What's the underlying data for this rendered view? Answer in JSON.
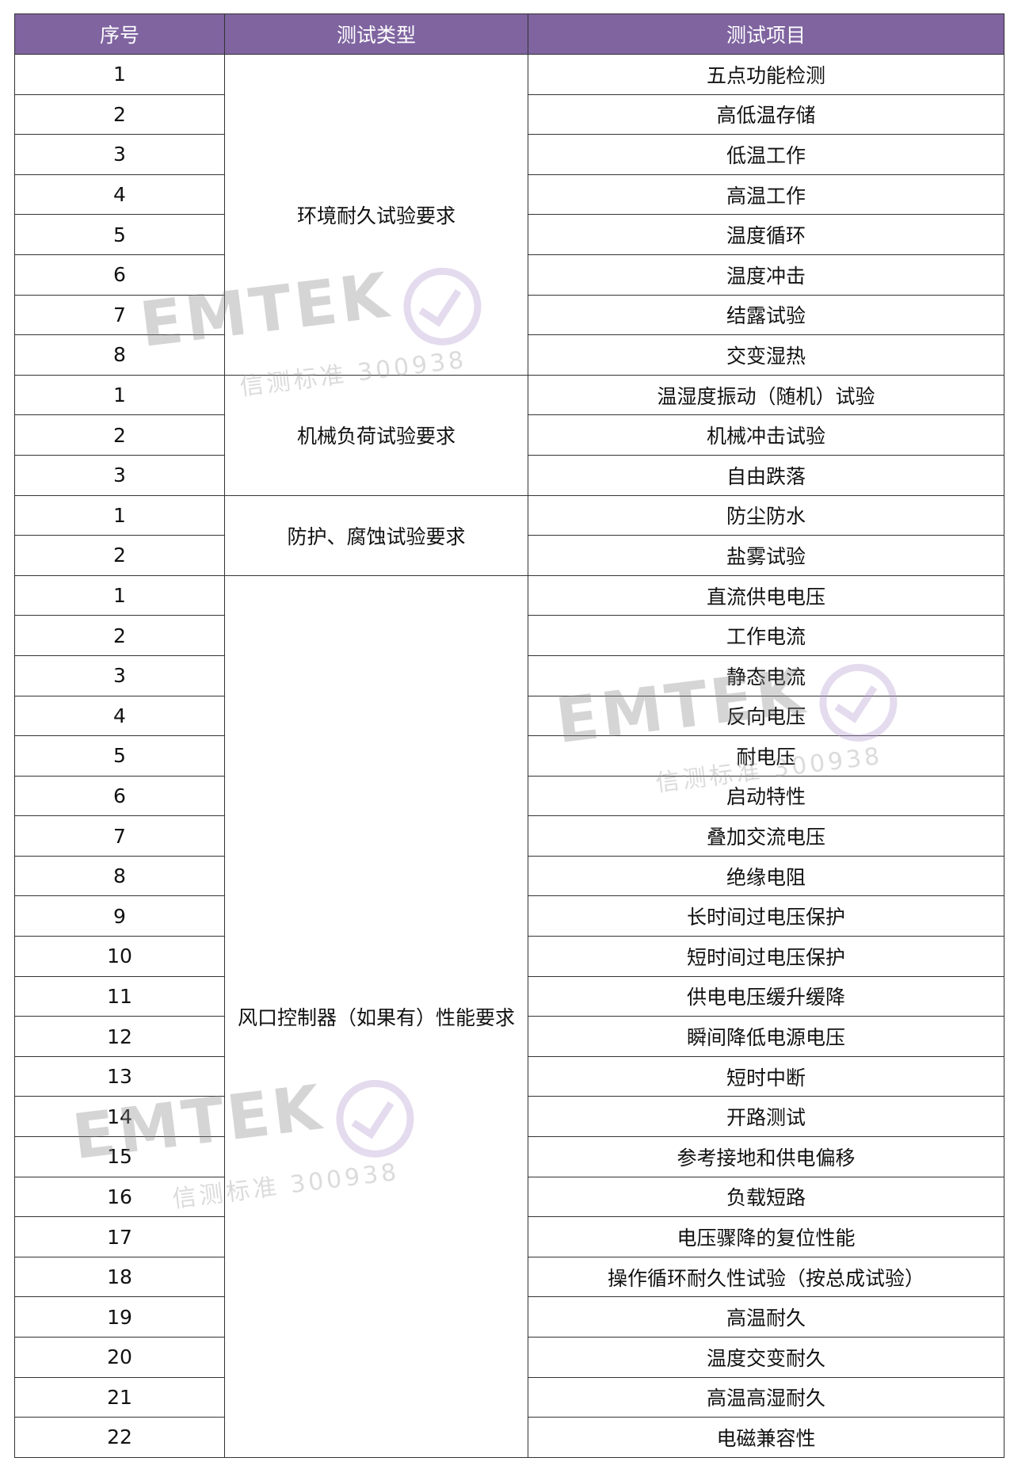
{
  "header": {
    "col1": "序号",
    "col2": "测试类型",
    "col3": "测试项目"
  },
  "colors": {
    "header_bg": "#7f64a0",
    "header_text": "#ffffff"
  },
  "groups": [
    {
      "type": "环境耐久试验要求",
      "items": [
        {
          "no": "1",
          "name": "五点功能检测"
        },
        {
          "no": "2",
          "name": "高低温存储"
        },
        {
          "no": "3",
          "name": "低温工作"
        },
        {
          "no": "4",
          "name": "高温工作"
        },
        {
          "no": "5",
          "name": "温度循环"
        },
        {
          "no": "6",
          "name": "温度冲击"
        },
        {
          "no": "7",
          "name": "结露试验"
        },
        {
          "no": "8",
          "name": "交变湿热"
        }
      ]
    },
    {
      "type": "机械负荷试验要求",
      "items": [
        {
          "no": "1",
          "name": "温湿度振动（随机）试验"
        },
        {
          "no": "2",
          "name": "机械冲击试验"
        },
        {
          "no": "3",
          "name": "自由跌落"
        }
      ]
    },
    {
      "type": "防护、腐蚀试验要求",
      "items": [
        {
          "no": "1",
          "name": "防尘防水"
        },
        {
          "no": "2",
          "name": "盐雾试验"
        }
      ]
    },
    {
      "type": "风口控制器（如果有）性能要求",
      "items": [
        {
          "no": "1",
          "name": "直流供电电压"
        },
        {
          "no": "2",
          "name": "工作电流"
        },
        {
          "no": "3",
          "name": "静态电流"
        },
        {
          "no": "4",
          "name": "反向电压"
        },
        {
          "no": "5",
          "name": "耐电压"
        },
        {
          "no": "6",
          "name": "启动特性"
        },
        {
          "no": "7",
          "name": "叠加交流电压"
        },
        {
          "no": "8",
          "name": "绝缘电阻"
        },
        {
          "no": "9",
          "name": "长时间过电压保护"
        },
        {
          "no": "10",
          "name": "短时间过电压保护"
        },
        {
          "no": "11",
          "name": "供电电压缓升缓降"
        },
        {
          "no": "12",
          "name": "瞬间降低电源电压"
        },
        {
          "no": "13",
          "name": "短时中断"
        },
        {
          "no": "14",
          "name": "开路测试"
        },
        {
          "no": "15",
          "name": "参考接地和供电偏移"
        },
        {
          "no": "16",
          "name": "负载短路"
        },
        {
          "no": "17",
          "name": "电压骤降的复位性能"
        },
        {
          "no": "18",
          "name": "操作循环耐久性试验（按总成试验）"
        },
        {
          "no": "19",
          "name": "高温耐久"
        },
        {
          "no": "20",
          "name": "温度交变耐久"
        },
        {
          "no": "21",
          "name": "高温高湿耐久"
        },
        {
          "no": "22",
          "name": "电磁兼容性"
        }
      ]
    }
  ],
  "watermark": {
    "logo": "EMTEK",
    "sub": "信测标准 300938"
  }
}
